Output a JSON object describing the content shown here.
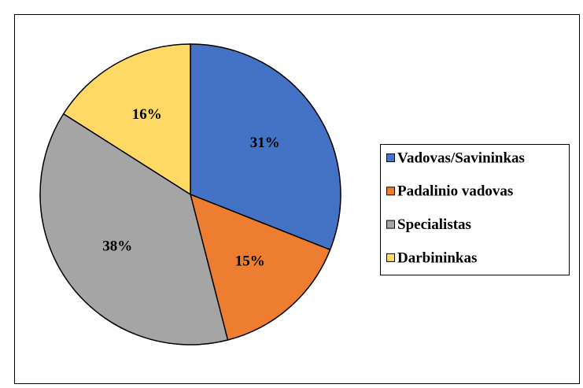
{
  "chart_data": {
    "type": "pie",
    "categories": [
      "Vadovas/Savininkas",
      "Padalinio vadovas",
      "Specialistas",
      "Darbininkas"
    ],
    "values": [
      31,
      15,
      38,
      16
    ],
    "value_labels": [
      "31%",
      "15%",
      "38%",
      "16%"
    ],
    "colors": [
      "#4472c4",
      "#ed7d31",
      "#a5a5a5",
      "#ffd966"
    ],
    "legend": "right"
  }
}
